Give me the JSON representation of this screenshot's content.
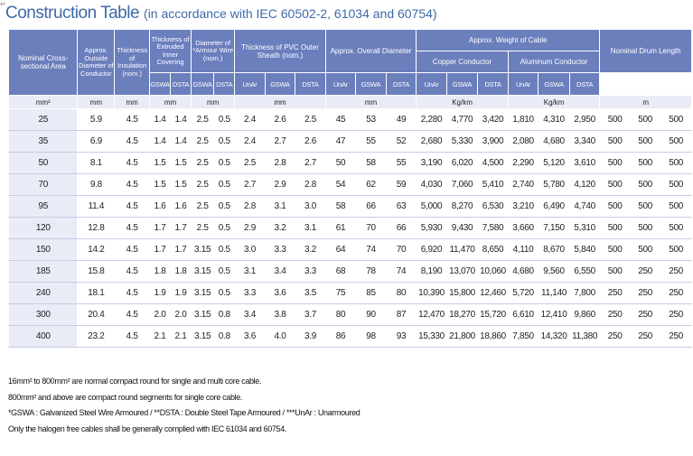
{
  "page_mark": "↵",
  "title": {
    "main": "Construction Table",
    "sub": "(in accordance with IEC 60502-2, 61034 and 60754)"
  },
  "table": {
    "headers": {
      "area": "Nominal Cross-sectional Area",
      "outside_diameter": "Approx. Outside Diameter of Conductor",
      "insulation": "Thickness of Insulation (nom.)",
      "inner_covering": "Thickness of Extruded Inner Covering",
      "armour_wire": "Diameter of *Armour Wire (nom.)",
      "sheath": "Thickness of PVC Outer Sheath (nom.)",
      "overall_diameter": "Approx. Overall Diameter",
      "weight": "Approx. Weight of Cable",
      "copper": "Copper Conductor",
      "aluminum": "Aluminum Conductor",
      "drum": "Nominal Drum Length"
    },
    "sub_headers": {
      "gswa": "GSWA",
      "dsta": "DSTA",
      "unar": "UnAr",
      "gswa_dsta_pair": [
        "GSWA",
        "DSTA"
      ],
      "triple": [
        "UnAr",
        "GSWA",
        "DSTA"
      ]
    },
    "units": [
      "mm²",
      "mm",
      "mm",
      "mm",
      "mm",
      "mm",
      "mm",
      "Kg/km",
      "Kg/km",
      "m"
    ],
    "rows": [
      [
        "25",
        "5.9",
        "4.5",
        "1.4",
        "1.4",
        "2.5",
        "0.5",
        "2.4",
        "2.6",
        "2.5",
        "45",
        "53",
        "49",
        "2,280",
        "4,770",
        "3,420",
        "1,810",
        "4,310",
        "2,950",
        "500",
        "500",
        "500"
      ],
      [
        "35",
        "6.9",
        "4.5",
        "1.4",
        "1.4",
        "2.5",
        "0.5",
        "2.4",
        "2.7",
        "2.6",
        "47",
        "55",
        "52",
        "2,680",
        "5,330",
        "3,900",
        "2,080",
        "4,680",
        "3,340",
        "500",
        "500",
        "500"
      ],
      [
        "50",
        "8.1",
        "4.5",
        "1.5",
        "1.5",
        "2.5",
        "0.5",
        "2.5",
        "2.8",
        "2.7",
        "50",
        "58",
        "55",
        "3,190",
        "6,020",
        "4,500",
        "2,290",
        "5,120",
        "3,610",
        "500",
        "500",
        "500"
      ],
      [
        "70",
        "9.8",
        "4.5",
        "1.5",
        "1.5",
        "2.5",
        "0.5",
        "2.7",
        "2.9",
        "2.8",
        "54",
        "62",
        "59",
        "4,030",
        "7,060",
        "5,410",
        "2,740",
        "5,780",
        "4,120",
        "500",
        "500",
        "500"
      ],
      [
        "95",
        "11.4",
        "4.5",
        "1.6",
        "1.6",
        "2.5",
        "0.5",
        "2.8",
        "3.1",
        "3.0",
        "58",
        "66",
        "63",
        "5,000",
        "8,270",
        "6,530",
        "3,210",
        "6,490",
        "4,740",
        "500",
        "500",
        "500"
      ],
      [
        "120",
        "12.8",
        "4.5",
        "1.7",
        "1.7",
        "2.5",
        "0.5",
        "2.9",
        "3.2",
        "3.1",
        "61",
        "70",
        "66",
        "5,930",
        "9,430",
        "7,580",
        "3,660",
        "7,150",
        "5,310",
        "500",
        "500",
        "500"
      ],
      [
        "150",
        "14.2",
        "4.5",
        "1.7",
        "1.7",
        "3.15",
        "0.5",
        "3.0",
        "3.3",
        "3.2",
        "64",
        "74",
        "70",
        "6,920",
        "11,470",
        "8,650",
        "4,110",
        "8,670",
        "5,840",
        "500",
        "500",
        "500"
      ],
      [
        "185",
        "15.8",
        "4.5",
        "1.8",
        "1.8",
        "3.15",
        "0.5",
        "3.1",
        "3.4",
        "3.3",
        "68",
        "78",
        "74",
        "8,190",
        "13,070",
        "10,060",
        "4,680",
        "9,560",
        "6,550",
        "500",
        "250",
        "250"
      ],
      [
        "240",
        "18.1",
        "4.5",
        "1.9",
        "1.9",
        "3.15",
        "0.5",
        "3.3",
        "3.6",
        "3.5",
        "75",
        "85",
        "80",
        "10,390",
        "15,800",
        "12,460",
        "5,720",
        "11,140",
        "7,800",
        "250",
        "250",
        "250"
      ],
      [
        "300",
        "20.4",
        "4.5",
        "2.0",
        "2.0",
        "3.15",
        "0.8",
        "3.4",
        "3.8",
        "3.7",
        "80",
        "90",
        "87",
        "12,470",
        "18,270",
        "15,720",
        "6,610",
        "12,410",
        "9,860",
        "250",
        "250",
        "250"
      ],
      [
        "400",
        "23.2",
        "4.5",
        "2.1",
        "2.1",
        "3.15",
        "0.8",
        "3.6",
        "4.0",
        "3.9",
        "86",
        "98",
        "93",
        "15,330",
        "21,800",
        "18,860",
        "7,850",
        "14,320",
        "11,380",
        "250",
        "250",
        "250"
      ]
    ]
  },
  "notes": [
    "16mm² to 800mm² are normal compact round for single and multi core cable.",
    "800mm² and above are compact round segments for single core cable.",
    "*GSWA : Galvanized Steel Wire Armoured  /  **DSTA : Double Steel Tape Armoured  /  ***UnAr : Unarmoured",
    "Only the halogen free cables shall be generally complied with IEC 61034 and 60754."
  ],
  "colors": {
    "title": "#3e6aa8",
    "header_bg": "#6b7fbd",
    "header_text": "#ffffff",
    "unit_row_bg": "#e9ebf6",
    "area_col_bg": "#e9ebf6"
  }
}
